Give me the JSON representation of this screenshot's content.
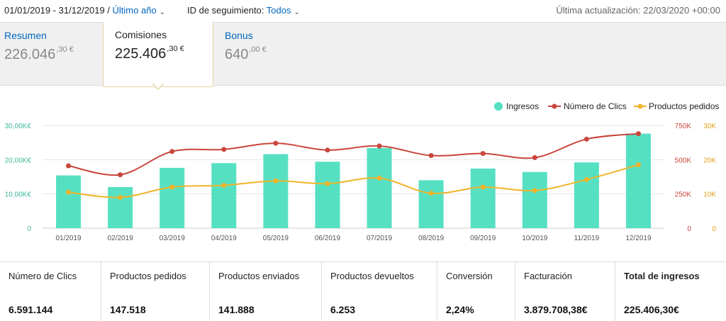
{
  "topbar": {
    "date_range": "01/01/2019 - 31/12/2019 /",
    "period_link": "Último año",
    "tracking_label": "ID de seguimiento:",
    "tracking_value": "Todos",
    "updated": "Última actualización: 22/03/2020 +00:00"
  },
  "tabs": [
    {
      "label": "Resumen",
      "value": "226.046",
      "cents": ",30 €"
    },
    {
      "label": "Comisiones",
      "value": "225.406",
      "cents": ",30 €"
    },
    {
      "label": "Bonus",
      "value": "640",
      "cents": ",00 €"
    }
  ],
  "chart_data": {
    "type": "bar",
    "categories": [
      "01/2019",
      "02/2019",
      "03/2019",
      "04/2019",
      "05/2019",
      "06/2019",
      "07/2019",
      "08/2019",
      "09/2019",
      "10/2019",
      "11/2019",
      "12/2019"
    ],
    "series": [
      {
        "name": "Ingresos",
        "type": "bar",
        "axis": "left",
        "color": "#56e0c2",
        "values": [
          15400,
          12000,
          17600,
          19000,
          21600,
          19400,
          23400,
          14000,
          17400,
          16400,
          19200,
          27600
        ]
      },
      {
        "name": "Número de Clics",
        "type": "line",
        "axis": "right1",
        "color": "#c9463d",
        "values": [
          455000,
          390000,
          560000,
          575000,
          620000,
          570000,
          600000,
          530000,
          545000,
          515000,
          650000,
          690000
        ]
      },
      {
        "name": "Productos pedidos",
        "type": "line",
        "axis": "right2",
        "color": "#f0b429",
        "values": [
          10500,
          9000,
          12000,
          12500,
          13800,
          13000,
          14600,
          10200,
          12000,
          11000,
          14200,
          18500
        ]
      }
    ],
    "left_axis": {
      "ticks": [
        "0",
        "10,00K€",
        "20,00K€",
        "30,00K€"
      ],
      "max": 30000
    },
    "right_axis_1": {
      "ticks": [
        "0",
        "250K",
        "500K",
        "750K"
      ],
      "max": 750000
    },
    "right_axis_2": {
      "ticks": [
        "0",
        "10K",
        "20K",
        "30K"
      ],
      "max": 30000
    },
    "legend_position": "top-right",
    "grid": true
  },
  "stats": [
    {
      "label": "Número de Clics",
      "value": "6.591.144"
    },
    {
      "label": "Productos pedidos",
      "value": "147.518"
    },
    {
      "label": "Productos enviados",
      "value": "141.888"
    },
    {
      "label": "Productos devueltos",
      "value": "6.253"
    },
    {
      "label": "Conversión",
      "value": "2,24%"
    },
    {
      "label": "Facturación",
      "value": "3.879.708,38€"
    },
    {
      "label": "Total de ingresos",
      "value": "225.406,30€"
    }
  ]
}
